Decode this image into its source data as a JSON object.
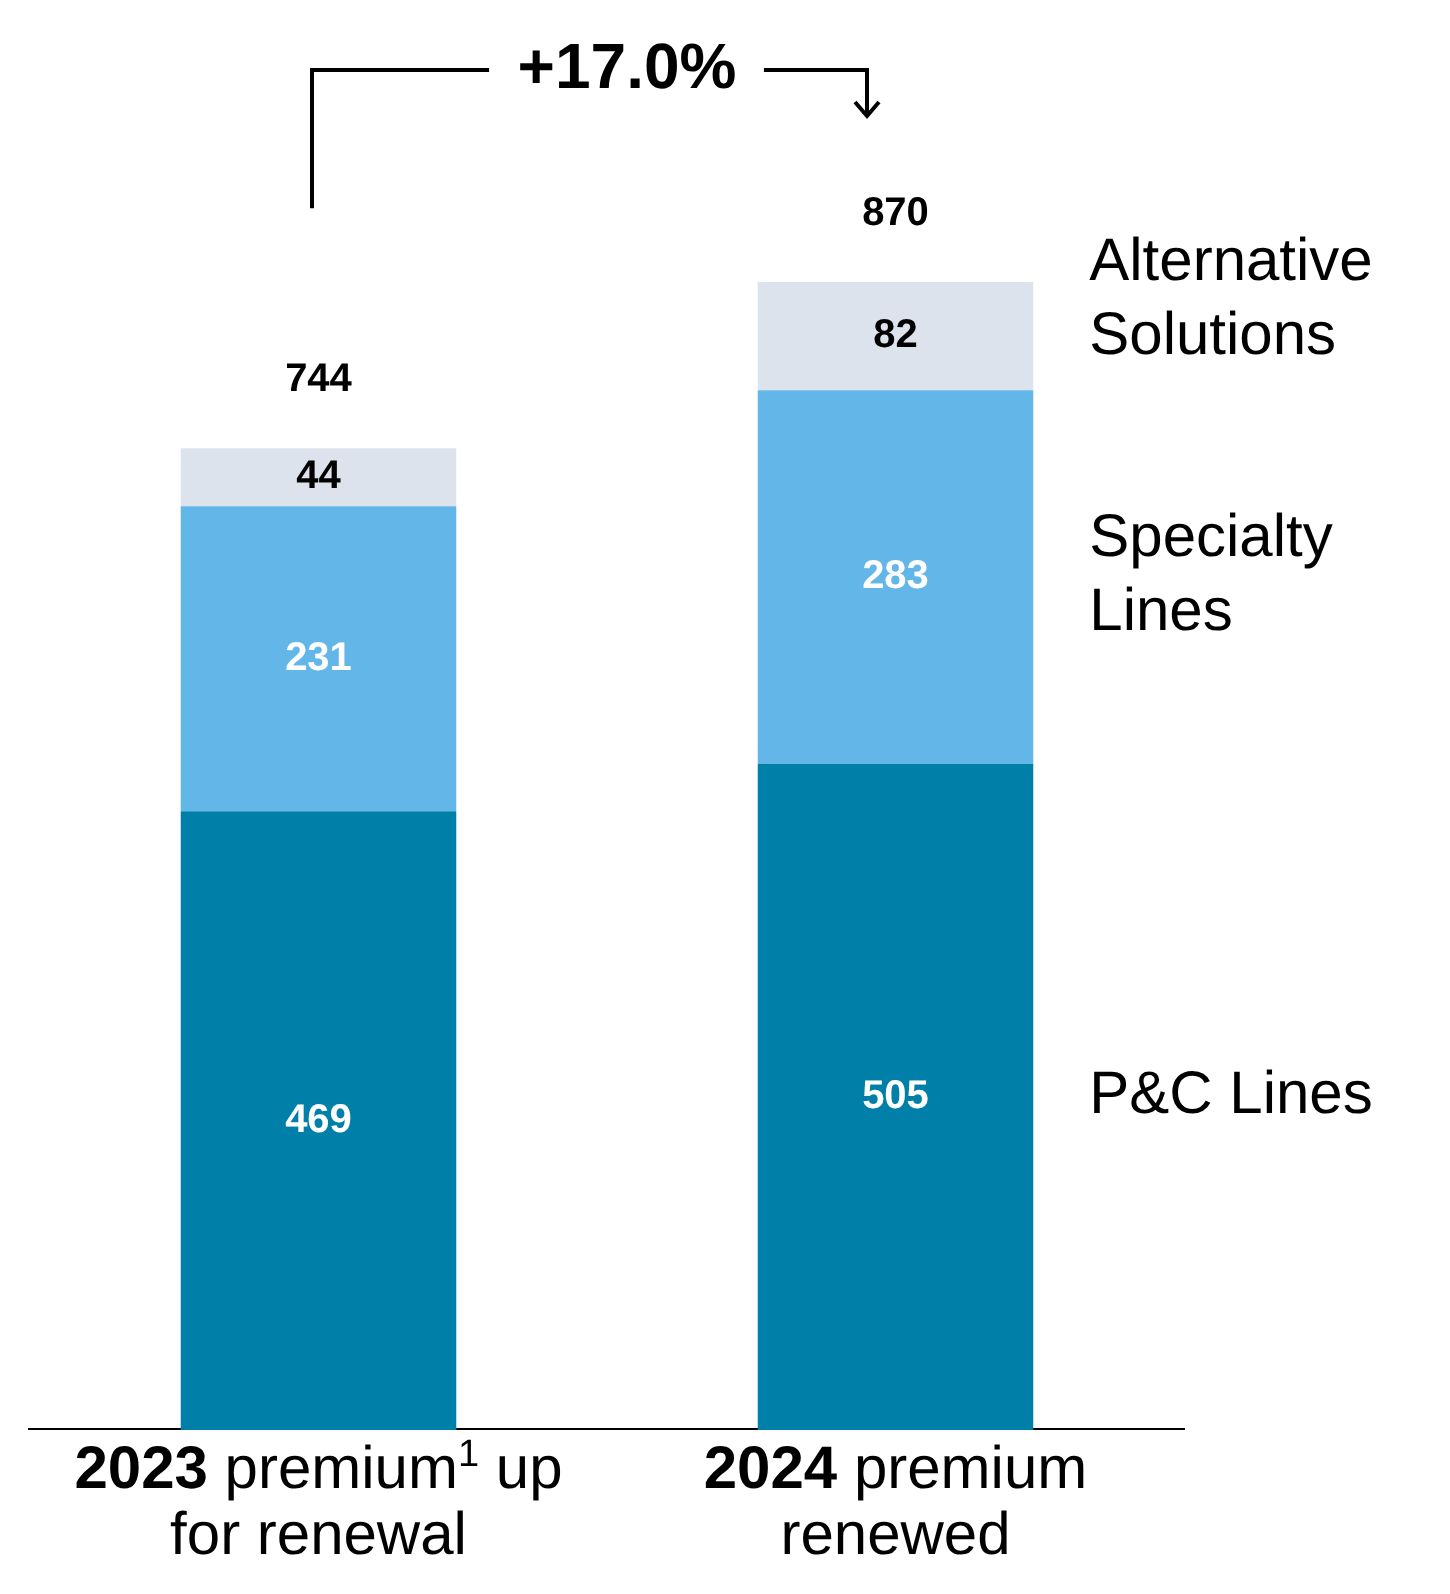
{
  "chart_data": {
    "type": "bar",
    "stacked": true,
    "categories": [
      "2023 premium$^{1}$ up for renewal",
      "2024 premium renewed"
    ],
    "series": [
      {
        "name": "P&C Lines",
        "color": "#0080a8",
        "values": [
          469,
          505
        ]
      },
      {
        "name": "Specialty Lines",
        "color": "#63b6e8",
        "values": [
          231,
          283
        ]
      },
      {
        "name": "Alternative Solutions",
        "color": "#dde3ec",
        "values": [
          44,
          82
        ]
      }
    ],
    "data_labels": true,
    "totals": [
      "744",
      "870"
    ],
    "annotations": [
      "+17.0%"
    ],
    "legend": false,
    "grid": false
  }
}
